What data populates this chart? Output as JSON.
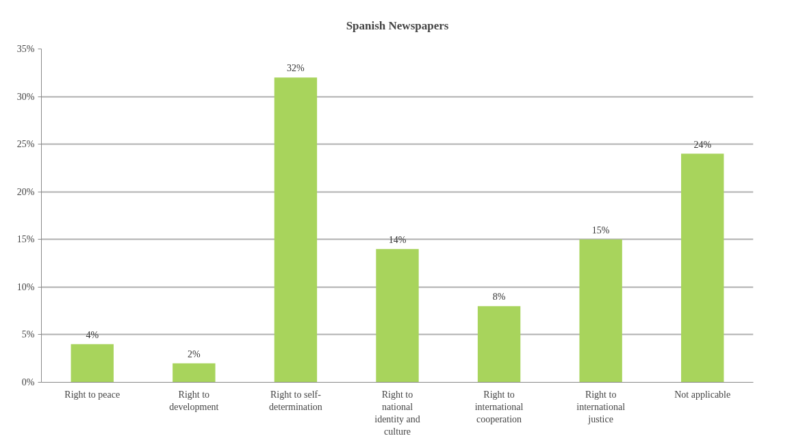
{
  "chart_data": {
    "type": "bar",
    "title": "Spanish Newspapers",
    "categories": [
      "Right to peace",
      "Right to development",
      "Right to self-determination",
      "Right to national identity and culture",
      "Right to international cooperation",
      "Right to international justice",
      "Not applicable"
    ],
    "values": [
      4,
      2,
      32,
      14,
      8,
      15,
      24
    ],
    "value_labels": [
      "4%",
      "2%",
      "32%",
      "14%",
      "8%",
      "15%",
      "24%"
    ],
    "color": "#a8d45c",
    "ylim": [
      0,
      35
    ],
    "yticks": [
      {
        "value": 0,
        "label": "0%"
      },
      {
        "value": 5,
        "label": "5%"
      },
      {
        "value": 10,
        "label": "10%"
      },
      {
        "value": 15,
        "label": "15%"
      },
      {
        "value": 20,
        "label": "20%"
      },
      {
        "value": 25,
        "label": "25%"
      },
      {
        "value": 30,
        "label": "30%"
      },
      {
        "value": 35,
        "label": "35%"
      }
    ],
    "grid": "y"
  }
}
